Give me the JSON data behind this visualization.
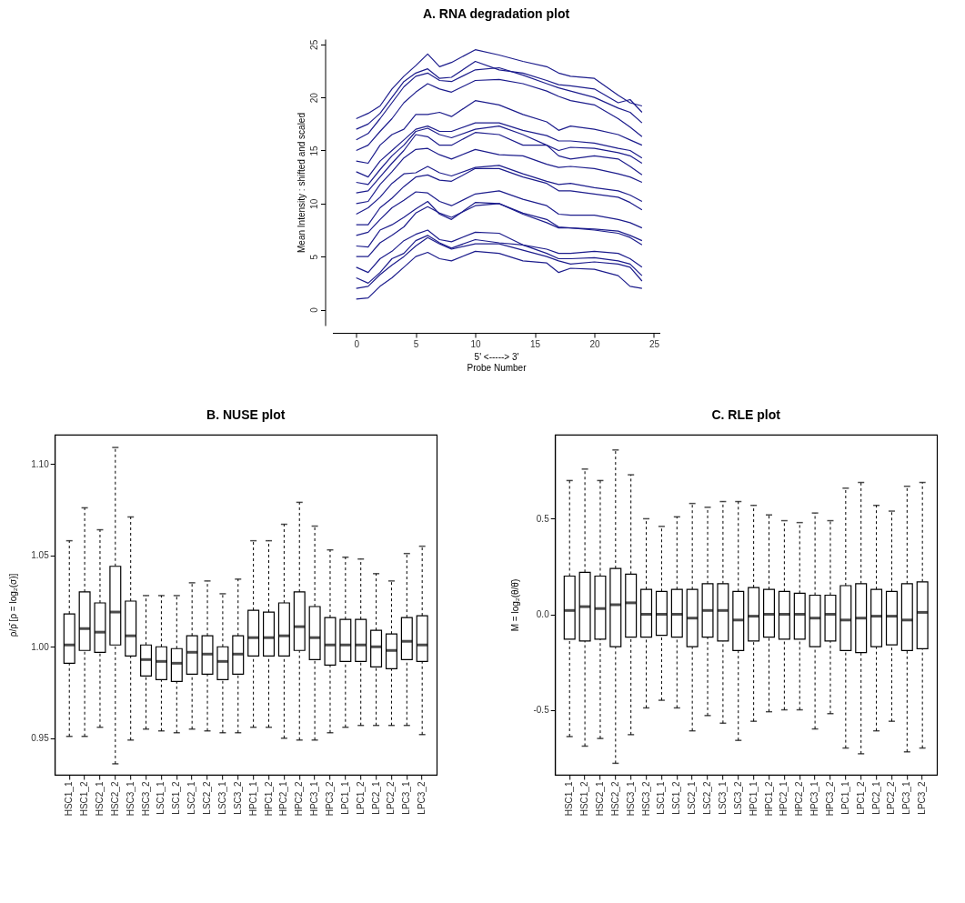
{
  "chart_data": [
    {
      "type": "line",
      "title": "A. RNA degradation plot",
      "xlabel": "5' <-----> 3'\nProbe Number",
      "ylabel": "Mean Intensity : shifted and scaled",
      "x": [
        0,
        1,
        2,
        3,
        4,
        5,
        6,
        7,
        8,
        10,
        12,
        14,
        16,
        17,
        18,
        20,
        22,
        23,
        24
      ],
      "xlim": [
        -2,
        25.5
      ],
      "ylim": [
        -1.5,
        25.5
      ],
      "xticks": [
        0,
        5,
        10,
        15,
        20,
        25
      ],
      "yticks": [
        0,
        5,
        10,
        15,
        20,
        25
      ],
      "grid": false,
      "legend": false,
      "line_style": "solid",
      "marker": "none",
      "series": [
        {
          "color": "#1c1c8c",
          "values": [
            18,
            18.5,
            19.2,
            20.8,
            22,
            23,
            24.1,
            22.9,
            23.3,
            24.5,
            24,
            23.4,
            22.9,
            22.3,
            22,
            21.8,
            20.2,
            19.5,
            19.2
          ]
        },
        {
          "color": "#1c1c8c",
          "values": [
            17,
            17.5,
            18.5,
            20,
            21.5,
            22.3,
            22.7,
            21.8,
            21.9,
            23.4,
            22.6,
            22.3,
            21.6,
            21.2,
            21.1,
            20.8,
            19.5,
            19.8,
            18.6
          ]
        },
        {
          "color": "#1c1c8c",
          "values": [
            16,
            16.6,
            18,
            19.5,
            21,
            22,
            22.3,
            21.6,
            21.5,
            22.6,
            22.8,
            22.1,
            21.3,
            20.9,
            20.6,
            20,
            19,
            18.6,
            17.6
          ]
        },
        {
          "color": "#1c1c8c",
          "values": [
            15,
            15.5,
            16.8,
            18,
            19.5,
            20.5,
            21.3,
            20.8,
            20.5,
            21.6,
            21.7,
            21.3,
            20.6,
            20.1,
            19.7,
            19.3,
            18,
            17.2,
            16.3
          ]
        },
        {
          "color": "#1c1c8c",
          "values": [
            14,
            13.8,
            15.5,
            16.5,
            17,
            18.4,
            18.4,
            18.6,
            18.2,
            19.7,
            19.3,
            18.4,
            17.7,
            16.9,
            17.3,
            17,
            16.5,
            16,
            15.5
          ]
        },
        {
          "color": "#1c1c8c",
          "values": [
            13,
            12.5,
            14,
            15,
            16,
            17,
            17.3,
            16.8,
            16.8,
            17.6,
            17.6,
            16.9,
            16.4,
            15.9,
            15.9,
            15.7,
            15.2,
            15,
            14.3
          ]
        },
        {
          "color": "#1c1c8c",
          "values": [
            12,
            11.8,
            13.2,
            14.5,
            15.5,
            16.8,
            17.1,
            16.5,
            16.2,
            17,
            17.3,
            16.5,
            15.5,
            15,
            15.3,
            15.2,
            14.8,
            14.5,
            13.8
          ]
        },
        {
          "color": "#1c1c8c",
          "values": [
            11,
            11.2,
            12.5,
            13.8,
            15,
            16.5,
            16.3,
            15.5,
            15.5,
            16.7,
            16.5,
            15.5,
            15.5,
            14.5,
            14.2,
            14.5,
            14.2,
            13.5,
            12.7
          ]
        },
        {
          "color": "#1c1c8c",
          "values": [
            10,
            10.2,
            11.8,
            13,
            14.3,
            15.1,
            15.2,
            14.6,
            14.2,
            15.1,
            14.6,
            14.5,
            13.7,
            13.4,
            13.5,
            13.3,
            12.8,
            12.5,
            12
          ]
        },
        {
          "color": "#1c1c8c",
          "values": [
            9,
            9.6,
            10.6,
            11.9,
            12.8,
            12.9,
            13.5,
            12.9,
            12.6,
            13.4,
            13.6,
            12.8,
            12.1,
            11.8,
            11.9,
            11.5,
            11.2,
            10.8,
            10.2
          ]
        },
        {
          "color": "#1c1c8c",
          "values": [
            8,
            8,
            9.6,
            10.5,
            11.6,
            12.5,
            12.7,
            12.2,
            12.1,
            13.3,
            13.3,
            12.5,
            11.9,
            11.2,
            11.2,
            10.9,
            10.6,
            10.1,
            9.4
          ]
        },
        {
          "color": "#1c1c8c",
          "values": [
            7,
            7.3,
            8.5,
            9.6,
            10.3,
            11.1,
            11,
            10.2,
            9.8,
            10.9,
            11.2,
            10.4,
            9.8,
            9,
            8.9,
            8.9,
            8.5,
            8.2,
            7.7
          ]
        },
        {
          "color": "#1c1c8c",
          "values": [
            6,
            5.9,
            7.5,
            8,
            8.7,
            9.5,
            10.2,
            9,
            8.5,
            10.1,
            10,
            9.1,
            8.5,
            7.8,
            7.7,
            7.6,
            7.4,
            7,
            6.5
          ]
        },
        {
          "color": "#1c1c8c",
          "values": [
            5,
            5,
            6.3,
            7,
            7.8,
            9.1,
            9.7,
            9.1,
            8.7,
            9.8,
            10,
            9,
            8.2,
            7.7,
            7.7,
            7.5,
            7.2,
            6.8,
            6.1
          ]
        },
        {
          "color": "#1c1c8c",
          "values": [
            4,
            3.5,
            4.8,
            5.5,
            6.5,
            7.1,
            7.5,
            6.6,
            6.4,
            7.3,
            7.2,
            6.1,
            5.7,
            5.3,
            5.3,
            5.5,
            5.3,
            4.8,
            4
          ]
        },
        {
          "color": "#1c1c8c",
          "values": [
            3,
            2.5,
            3.5,
            4.8,
            5.3,
            6.5,
            7,
            6.3,
            5.8,
            6.6,
            6.3,
            6.1,
            5.3,
            4.8,
            4.8,
            4.9,
            4.6,
            4.3,
            3.2
          ]
        },
        {
          "color": "#1c1c8c",
          "values": [
            2,
            2.2,
            3.3,
            4.2,
            5,
            6,
            6.8,
            6.2,
            5.7,
            6.2,
            6.2,
            5.6,
            5,
            4.6,
            4.3,
            4.5,
            4.3,
            4,
            2.7
          ]
        },
        {
          "color": "#1c1c8c",
          "values": [
            1,
            1.1,
            2.2,
            3,
            4,
            5,
            5.4,
            4.8,
            4.6,
            5.5,
            5.3,
            4.6,
            4.4,
            3.5,
            3.9,
            3.8,
            3.2,
            2.2,
            2
          ]
        }
      ]
    },
    {
      "type": "box",
      "title": "B. NUSE plot",
      "ylabel": "ρ/ρ̄ [ρ = log₂(σ)]",
      "ylim": [
        0.93,
        1.116
      ],
      "yticks": [
        {
          "value": 0.95,
          "label": "0.95"
        },
        {
          "value": 1,
          "label": "1.00"
        },
        {
          "value": 1.05,
          "label": "1.05"
        },
        {
          "value": 1.1,
          "label": "1.10"
        }
      ],
      "grid": false,
      "line_style": "dashed",
      "color": "#000000",
      "categories": [
        "HSC1_1",
        "HSC1_2",
        "HSC2_1",
        "HSC2_2",
        "HSC3_1",
        "HSC3_2",
        "LSC1_1",
        "LSC1_2",
        "LSC2_1",
        "LSC2_2",
        "LSC3_1",
        "LSC3_2",
        "HPC1_1",
        "HPC1_2",
        "HPC2_1",
        "HPC2_2",
        "HPC3_1",
        "HPC3_2",
        "LPC1_1",
        "LPC1_2",
        "LPC2_1",
        "LPC2_2",
        "LPC3_1",
        "LPC3_2"
      ],
      "boxes": [
        {
          "low": 0.951,
          "q1": 0.991,
          "median": 1.001,
          "q3": 1.018,
          "high": 1.058
        },
        {
          "low": 0.951,
          "q1": 0.998,
          "median": 1.01,
          "q3": 1.03,
          "high": 1.076
        },
        {
          "low": 0.956,
          "q1": 0.997,
          "median": 1.008,
          "q3": 1.024,
          "high": 1.064
        },
        {
          "low": 0.936,
          "q1": 1.001,
          "median": 1.019,
          "q3": 1.044,
          "high": 1.109
        },
        {
          "low": 0.949,
          "q1": 0.995,
          "median": 1.006,
          "q3": 1.025,
          "high": 1.071
        },
        {
          "low": 0.955,
          "q1": 0.984,
          "median": 0.993,
          "q3": 1.001,
          "high": 1.028
        },
        {
          "low": 0.954,
          "q1": 0.982,
          "median": 0.992,
          "q3": 1,
          "high": 1.028
        },
        {
          "low": 0.953,
          "q1": 0.981,
          "median": 0.991,
          "q3": 0.999,
          "high": 1.028
        },
        {
          "low": 0.955,
          "q1": 0.985,
          "median": 0.997,
          "q3": 1.006,
          "high": 1.035
        },
        {
          "low": 0.954,
          "q1": 0.985,
          "median": 0.996,
          "q3": 1.006,
          "high": 1.036
        },
        {
          "low": 0.953,
          "q1": 0.982,
          "median": 0.992,
          "q3": 1,
          "high": 1.029
        },
        {
          "low": 0.953,
          "q1": 0.985,
          "median": 0.996,
          "q3": 1.006,
          "high": 1.037
        },
        {
          "low": 0.956,
          "q1": 0.995,
          "median": 1.005,
          "q3": 1.02,
          "high": 1.058
        },
        {
          "low": 0.956,
          "q1": 0.995,
          "median": 1.005,
          "q3": 1.019,
          "high": 1.058
        },
        {
          "low": 0.95,
          "q1": 0.995,
          "median": 1.006,
          "q3": 1.024,
          "high": 1.067
        },
        {
          "low": 0.949,
          "q1": 0.998,
          "median": 1.011,
          "q3": 1.03,
          "high": 1.079
        },
        {
          "low": 0.949,
          "q1": 0.993,
          "median": 1.005,
          "q3": 1.022,
          "high": 1.066
        },
        {
          "low": 0.953,
          "q1": 0.99,
          "median": 1.001,
          "q3": 1.016,
          "high": 1.053
        },
        {
          "low": 0.956,
          "q1": 0.992,
          "median": 1.001,
          "q3": 1.015,
          "high": 1.049
        },
        {
          "low": 0.957,
          "q1": 0.992,
          "median": 1.001,
          "q3": 1.015,
          "high": 1.048
        },
        {
          "low": 0.957,
          "q1": 0.989,
          "median": 1,
          "q3": 1.009,
          "high": 1.04
        },
        {
          "low": 0.957,
          "q1": 0.988,
          "median": 0.998,
          "q3": 1.007,
          "high": 1.036
        },
        {
          "low": 0.957,
          "q1": 0.993,
          "median": 1.003,
          "q3": 1.016,
          "high": 1.051
        },
        {
          "low": 0.952,
          "q1": 0.992,
          "median": 1.001,
          "q3": 1.017,
          "high": 1.055
        }
      ]
    },
    {
      "type": "box",
      "title": "C. RLE plot",
      "ylabel": "M = log₂(θ/θ̄)",
      "ylim": [
        -0.84,
        0.94
      ],
      "yticks": [
        {
          "value": -0.5,
          "label": "-0.5"
        },
        {
          "value": 0,
          "label": "0.0"
        },
        {
          "value": 0.5,
          "label": "0.5"
        }
      ],
      "grid": false,
      "line_style": "dashed",
      "color": "#000000",
      "categories": [
        "HSC1_1",
        "HSC1_2",
        "HSC2_1",
        "HSC2_2",
        "HSC3_1",
        "HSC3_2",
        "LSC1_1",
        "LSC1_2",
        "LSC2_1",
        "LSC2_2",
        "LSC3_1",
        "LSC3_2",
        "HPC1_1",
        "HPC1_2",
        "HPC2_1",
        "HPC2_2",
        "HPC3_1",
        "HPC3_2",
        "LPC1_1",
        "LPC1_2",
        "LPC2_1",
        "LPC2_2",
        "LPC3_1",
        "LPC3_2"
      ],
      "boxes": [
        {
          "low": -0.64,
          "q1": -0.13,
          "median": 0.02,
          "q3": 0.2,
          "high": 0.7
        },
        {
          "low": -0.69,
          "q1": -0.14,
          "median": 0.04,
          "q3": 0.22,
          "high": 0.76
        },
        {
          "low": -0.65,
          "q1": -0.13,
          "median": 0.03,
          "q3": 0.2,
          "high": 0.7
        },
        {
          "low": -0.78,
          "q1": -0.17,
          "median": 0.05,
          "q3": 0.24,
          "high": 0.86
        },
        {
          "low": -0.63,
          "q1": -0.12,
          "median": 0.06,
          "q3": 0.21,
          "high": 0.73
        },
        {
          "low": -0.49,
          "q1": -0.12,
          "median": 0,
          "q3": 0.13,
          "high": 0.5
        },
        {
          "low": -0.45,
          "q1": -0.11,
          "median": 0,
          "q3": 0.12,
          "high": 0.46
        },
        {
          "low": -0.49,
          "q1": -0.12,
          "median": 0,
          "q3": 0.13,
          "high": 0.51
        },
        {
          "low": -0.61,
          "q1": -0.17,
          "median": -0.02,
          "q3": 0.13,
          "high": 0.58
        },
        {
          "low": -0.53,
          "q1": -0.12,
          "median": 0.02,
          "q3": 0.16,
          "high": 0.56
        },
        {
          "low": -0.57,
          "q1": -0.14,
          "median": 0.02,
          "q3": 0.16,
          "high": 0.59
        },
        {
          "low": -0.66,
          "q1": -0.19,
          "median": -0.03,
          "q3": 0.12,
          "high": 0.59
        },
        {
          "low": -0.56,
          "q1": -0.14,
          "median": -0.01,
          "q3": 0.14,
          "high": 0.57
        },
        {
          "low": -0.51,
          "q1": -0.12,
          "median": 0,
          "q3": 0.13,
          "high": 0.52
        },
        {
          "low": -0.5,
          "q1": -0.13,
          "median": 0,
          "q3": 0.12,
          "high": 0.49
        },
        {
          "low": -0.5,
          "q1": -0.13,
          "median": 0,
          "q3": 0.11,
          "high": 0.48
        },
        {
          "low": -0.6,
          "q1": -0.17,
          "median": -0.02,
          "q3": 0.1,
          "high": 0.53
        },
        {
          "low": -0.52,
          "q1": -0.14,
          "median": 0,
          "q3": 0.1,
          "high": 0.49
        },
        {
          "low": -0.7,
          "q1": -0.19,
          "median": -0.03,
          "q3": 0.15,
          "high": 0.66
        },
        {
          "low": -0.73,
          "q1": -0.2,
          "median": -0.02,
          "q3": 0.16,
          "high": 0.69
        },
        {
          "low": -0.61,
          "q1": -0.17,
          "median": -0.01,
          "q3": 0.13,
          "high": 0.57
        },
        {
          "low": -0.56,
          "q1": -0.16,
          "median": -0.01,
          "q3": 0.12,
          "high": 0.54
        },
        {
          "low": -0.72,
          "q1": -0.19,
          "median": -0.03,
          "q3": 0.16,
          "high": 0.67
        },
        {
          "low": -0.7,
          "q1": -0.18,
          "median": 0.01,
          "q3": 0.17,
          "high": 0.69
        }
      ]
    }
  ]
}
